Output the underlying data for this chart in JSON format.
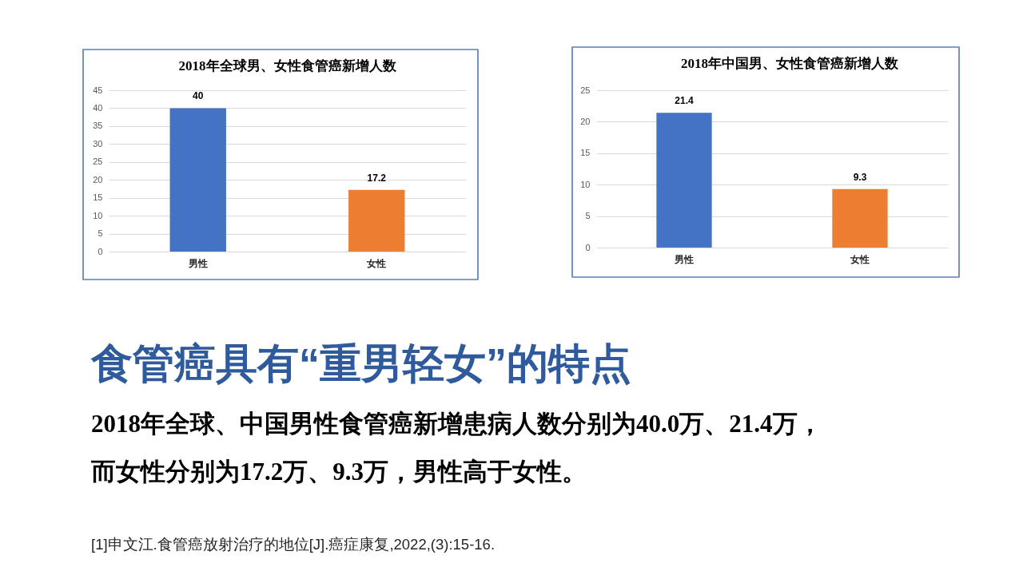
{
  "chart_data": [
    {
      "type": "bar",
      "title": "2018年全球男、女性食管癌新增人数",
      "categories": [
        "男性",
        "女性"
      ],
      "values": [
        40,
        17.2
      ],
      "colors": [
        "#4472c4",
        "#ed7d31"
      ],
      "ylim": [
        0,
        45
      ],
      "yticks": [
        0,
        5,
        10,
        15,
        20,
        25,
        30,
        35,
        40,
        45
      ],
      "grid": "y",
      "data_labels": true
    },
    {
      "type": "bar",
      "title": "2018年中国男、女性食管癌新增人数",
      "categories": [
        "男性",
        "女性"
      ],
      "values": [
        21.4,
        9.3
      ],
      "colors": [
        "#4472c4",
        "#ed7d31"
      ],
      "ylim": [
        0,
        25
      ],
      "yticks": [
        0,
        5,
        10,
        15,
        20,
        25
      ],
      "grid": "y",
      "data_labels": true
    },
    {
      "type": "other",
      "title": "食管癌具有“重男轻女”的特点",
      "annotations": [
        "2018年全球、中国男性食管癌新增患病人数分别为40.0万、21.4万，",
        "而女性分别为17.2万、9.3万，男性高于女性。",
        "[1]申文江.食管癌放射治疗的地位[J].癌症康复,2022,(3):15-16."
      ]
    }
  ]
}
